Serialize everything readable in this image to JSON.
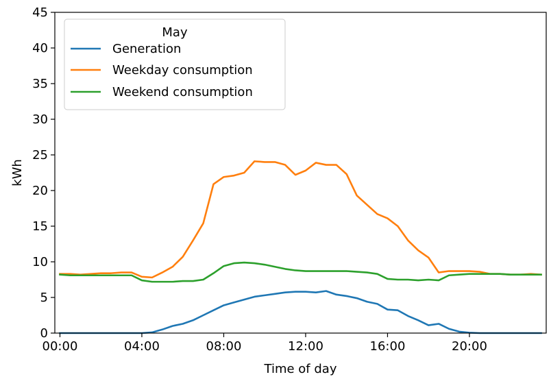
{
  "chart_data": {
    "type": "line",
    "xlabel": "Time of day",
    "ylabel": "kWh",
    "xlim": [
      -0.25,
      23.75
    ],
    "ylim": [
      0,
      45
    ],
    "x_ticks": [
      0,
      4,
      8,
      12,
      16,
      20
    ],
    "x_tick_labels": [
      "00:00",
      "04:00",
      "08:00",
      "12:00",
      "16:00",
      "20:00"
    ],
    "y_ticks": [
      0,
      5,
      10,
      15,
      20,
      25,
      30,
      35,
      40,
      45
    ],
    "y_tick_labels": [
      "0",
      "5",
      "10",
      "15",
      "20",
      "25",
      "30",
      "35",
      "40",
      "45"
    ],
    "grid": false,
    "legend": {
      "title": "May",
      "position": "top-left"
    },
    "x": [
      0,
      0.5,
      1,
      1.5,
      2,
      2.5,
      3,
      3.5,
      4,
      4.5,
      5,
      5.5,
      6,
      6.5,
      7,
      7.5,
      8,
      8.5,
      9,
      9.5,
      10,
      10.5,
      11,
      11.5,
      12,
      12.5,
      13,
      13.5,
      14,
      14.5,
      15,
      15.5,
      16,
      16.5,
      17,
      17.5,
      18,
      18.5,
      19,
      19.5,
      20,
      20.5,
      21,
      21.5,
      22,
      22.5,
      23,
      23.5
    ],
    "series": [
      {
        "name": "Generation",
        "color": "#1f77b4",
        "values": [
          0,
          0,
          0,
          0,
          0,
          0,
          0,
          0,
          0,
          0.1,
          0.5,
          1.0,
          1.3,
          1.8,
          2.5,
          3.2,
          3.9,
          4.3,
          4.7,
          5.1,
          5.3,
          5.5,
          5.7,
          5.8,
          5.8,
          5.7,
          5.9,
          5.4,
          5.2,
          4.9,
          4.4,
          4.1,
          3.3,
          3.2,
          2.4,
          1.8,
          1.1,
          1.3,
          0.6,
          0.2,
          0.05,
          0,
          0,
          0,
          0,
          0,
          0,
          0
        ]
      },
      {
        "name": "Weekday consumption",
        "color": "#ff7f0e",
        "values": [
          8.3,
          8.3,
          8.2,
          8.3,
          8.4,
          8.4,
          8.5,
          8.5,
          7.9,
          7.8,
          8.5,
          9.3,
          10.7,
          13.0,
          15.4,
          20.9,
          21.9,
          22.1,
          22.5,
          24.1,
          24.0,
          24.0,
          23.6,
          22.2,
          22.8,
          23.9,
          23.6,
          23.6,
          22.3,
          19.3,
          18.0,
          16.7,
          16.1,
          15.0,
          13.0,
          11.6,
          10.6,
          8.5,
          8.7,
          8.7,
          8.7,
          8.6,
          8.3,
          8.3,
          8.2,
          8.2,
          8.3,
          8.2
        ]
      },
      {
        "name": "Weekend consumption",
        "color": "#2ca02c",
        "values": [
          8.2,
          8.1,
          8.1,
          8.1,
          8.1,
          8.1,
          8.1,
          8.1,
          7.4,
          7.2,
          7.2,
          7.2,
          7.3,
          7.3,
          7.5,
          8.4,
          9.4,
          9.8,
          9.9,
          9.8,
          9.6,
          9.3,
          9.0,
          8.8,
          8.7,
          8.7,
          8.7,
          8.7,
          8.7,
          8.6,
          8.5,
          8.3,
          7.6,
          7.5,
          7.5,
          7.4,
          7.5,
          7.4,
          8.1,
          8.2,
          8.3,
          8.3,
          8.3,
          8.3,
          8.2,
          8.2,
          8.2,
          8.2
        ]
      }
    ]
  }
}
